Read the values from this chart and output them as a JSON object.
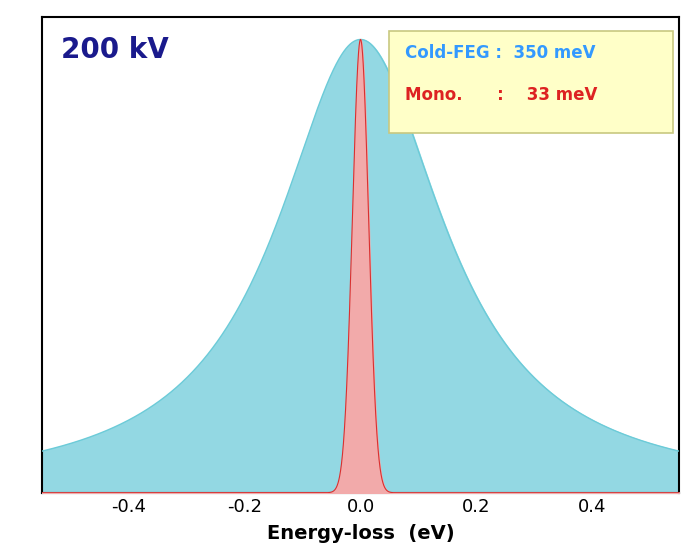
{
  "title": "200 kV",
  "xlabel": "Energy-loss  (eV)",
  "xlim": [
    -0.55,
    0.55
  ],
  "ylim": [
    0,
    1.05
  ],
  "xticks": [
    -0.4,
    -0.2,
    0.0,
    0.2,
    0.4
  ],
  "xtick_labels": [
    "-0.4",
    "-0.2",
    "0.0",
    "0.2",
    "0.4"
  ],
  "cold_feg_fwhm_eV": 0.35,
  "mono_fwhm_eV": 0.033,
  "cold_feg_color_fill": "#93D8E3",
  "cold_feg_color_line": "#6CCBD8",
  "mono_color_fill": "#F2AAAA",
  "mono_color_line": "#D93030",
  "legend_box_facecolor": "#FFFFC8",
  "legend_box_edgecolor": "#C8C880",
  "legend_cold_feg_color": "#3399FF",
  "legend_mono_color": "#DD2222",
  "title_color": "#1A1A8C",
  "background_color": "#ffffff",
  "figsize": [
    7.0,
    5.6
  ],
  "dpi": 100
}
